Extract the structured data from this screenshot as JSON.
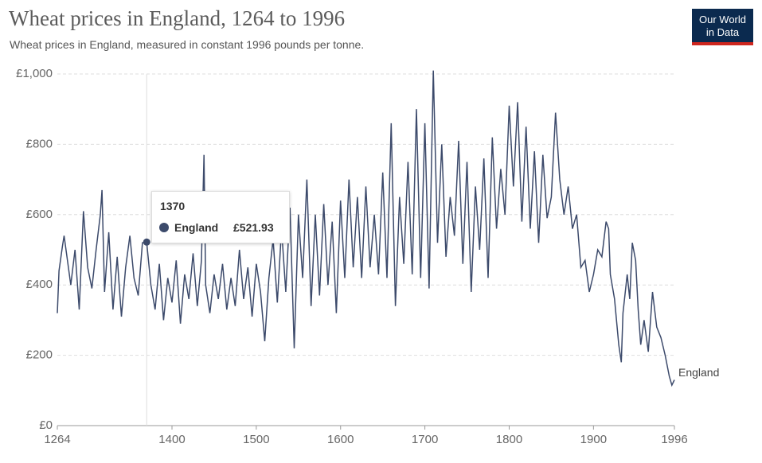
{
  "chart_data": {
    "type": "line",
    "title": "Wheat prices in England, 1264 to 1996",
    "subtitle": "Wheat prices in England, measured in constant 1996 pounds per tonne.",
    "x": [
      1264,
      1266,
      1270,
      1272,
      1280,
      1285,
      1290,
      1295,
      1300,
      1305,
      1310,
      1315,
      1317,
      1320,
      1325,
      1330,
      1335,
      1340,
      1345,
      1350,
      1355,
      1360,
      1365,
      1370,
      1375,
      1380,
      1385,
      1390,
      1395,
      1400,
      1405,
      1410,
      1415,
      1420,
      1425,
      1430,
      1435,
      1438,
      1440,
      1445,
      1450,
      1455,
      1460,
      1465,
      1470,
      1475,
      1480,
      1485,
      1490,
      1495,
      1500,
      1505,
      1510,
      1515,
      1520,
      1525,
      1530,
      1535,
      1540,
      1545,
      1550,
      1555,
      1560,
      1565,
      1570,
      1575,
      1580,
      1585,
      1590,
      1595,
      1600,
      1605,
      1610,
      1615,
      1620,
      1625,
      1630,
      1635,
      1640,
      1645,
      1650,
      1655,
      1660,
      1665,
      1670,
      1675,
      1680,
      1685,
      1690,
      1695,
      1700,
      1705,
      1710,
      1715,
      1720,
      1725,
      1730,
      1735,
      1740,
      1745,
      1750,
      1755,
      1760,
      1765,
      1770,
      1775,
      1780,
      1785,
      1790,
      1795,
      1800,
      1805,
      1810,
      1815,
      1820,
      1825,
      1830,
      1835,
      1840,
      1845,
      1850,
      1855,
      1860,
      1865,
      1870,
      1875,
      1880,
      1885,
      1890,
      1895,
      1900,
      1905,
      1910,
      1915,
      1918,
      1920,
      1925,
      1930,
      1933,
      1935,
      1940,
      1943,
      1946,
      1950,
      1953,
      1956,
      1960,
      1965,
      1970,
      1975,
      1980,
      1985,
      1990,
      1993,
      1996
    ],
    "series": [
      {
        "name": "England",
        "color": "#3c4a6b",
        "values": [
          320,
          440,
          510,
          540,
          400,
          500,
          330,
          610,
          450,
          390,
          500,
          600,
          670,
          380,
          550,
          330,
          480,
          310,
          450,
          540,
          420,
          370,
          520,
          521.93,
          400,
          330,
          460,
          300,
          420,
          350,
          470,
          290,
          430,
          360,
          490,
          340,
          470,
          770,
          400,
          320,
          430,
          360,
          460,
          330,
          420,
          340,
          500,
          360,
          450,
          310,
          460,
          380,
          240,
          420,
          530,
          350,
          560,
          380,
          620,
          220,
          600,
          420,
          700,
          340,
          600,
          370,
          630,
          400,
          580,
          320,
          640,
          420,
          700,
          450,
          650,
          420,
          680,
          450,
          600,
          430,
          720,
          420,
          860,
          340,
          650,
          460,
          750,
          430,
          900,
          420,
          860,
          390,
          1010,
          520,
          800,
          480,
          650,
          540,
          810,
          460,
          750,
          380,
          680,
          500,
          760,
          420,
          820,
          560,
          730,
          600,
          910,
          680,
          920,
          580,
          850,
          560,
          780,
          520,
          770,
          590,
          650,
          890,
          700,
          600,
          680,
          560,
          600,
          450,
          470,
          380,
          430,
          500,
          480,
          580,
          560,
          430,
          360,
          230,
          180,
          320,
          430,
          360,
          520,
          470,
          330,
          230,
          300,
          210,
          380,
          280,
          250,
          200,
          140,
          115,
          130
        ]
      }
    ],
    "xlim": [
      1264,
      1996
    ],
    "xticks": [
      1264,
      1400,
      1500,
      1600,
      1700,
      1800,
      1900,
      1996
    ],
    "ylim": [
      0,
      1000
    ],
    "yticks": [
      {
        "value": 0,
        "label": "£0"
      },
      {
        "value": 200,
        "label": "£200"
      },
      {
        "value": 400,
        "label": "£400"
      },
      {
        "value": 600,
        "label": "£600"
      },
      {
        "value": 800,
        "label": "£800"
      },
      {
        "value": 1000,
        "label": "£1,000"
      }
    ],
    "grid": true,
    "tooltip": {
      "x": 1370,
      "title": "1370",
      "value": 521.93,
      "value_label": "£521.93"
    }
  },
  "logo": [
    "Our World",
    "in Data"
  ]
}
